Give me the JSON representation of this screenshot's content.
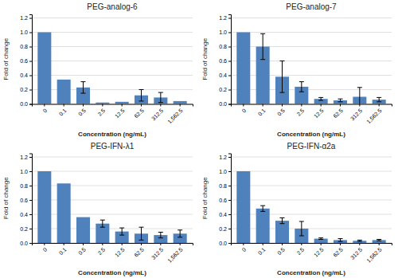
{
  "chart_data": [
    {
      "type": "bar",
      "title": "PEG-analog-6",
      "categories": [
        "0",
        "0.1",
        "0.5",
        "2.5",
        "12.5",
        "62.5",
        "312.5",
        "1,562.5"
      ],
      "values": [
        1.0,
        0.34,
        0.23,
        0.02,
        0.03,
        0.12,
        0.09,
        0.04
      ],
      "errors": [
        0.0,
        0.0,
        0.08,
        0.0,
        0.0,
        0.08,
        0.07,
        0.0
      ],
      "color": "#4f81bd",
      "xlabel": "Concentration (ng/mL)",
      "ylabel": "Fold of change",
      "ylim": [
        0,
        1.25
      ],
      "yticks": [
        {
          "value": 0,
          "label": "0.0"
        },
        0.2,
        0.4,
        0.6,
        0.8,
        {
          "value": 1.0,
          "label": "1.0"
        },
        1.2
      ],
      "grid": true
    },
    {
      "type": "bar",
      "title": "PEG-analog-7",
      "categories": [
        "0",
        "0.1",
        "0.5",
        "2.5",
        "12.5",
        "62.5",
        "312.5",
        "1,562.5"
      ],
      "values": [
        1.0,
        0.8,
        0.38,
        0.24,
        0.07,
        0.05,
        0.1,
        0.06
      ],
      "errors": [
        0.0,
        0.18,
        0.22,
        0.07,
        0.02,
        0.02,
        0.13,
        0.03
      ],
      "color": "#4f81bd",
      "xlabel": "Concentration (ng/mL)",
      "ylabel": "Fold of change",
      "ylim": [
        0,
        1.25
      ],
      "yticks": [
        {
          "value": 0,
          "label": "0.0"
        },
        0.2,
        0.4,
        0.6,
        0.8,
        {
          "value": 1.0,
          "label": "1.0"
        },
        1.2
      ],
      "grid": true
    },
    {
      "type": "bar",
      "title": "PEG-IFN-λ1",
      "categories": [
        "0",
        "0.1",
        "0.5",
        "2.5",
        "12.5",
        "62.5",
        "312.5",
        "1,562.5"
      ],
      "values": [
        1.0,
        0.83,
        0.36,
        0.27,
        0.16,
        0.13,
        0.11,
        0.13
      ],
      "errors": [
        0.0,
        0.0,
        0.0,
        0.05,
        0.05,
        0.09,
        0.04,
        0.05
      ],
      "color": "#4f81bd",
      "xlabel": "Concentration (ng/mL)",
      "ylabel": "Fold of change",
      "ylim": [
        0,
        1.25
      ],
      "yticks": [
        {
          "value": 0,
          "label": "0.0"
        },
        0.2,
        0.4,
        0.6,
        0.8,
        {
          "value": 1.0,
          "label": "1.0"
        },
        1.2
      ],
      "grid": true
    },
    {
      "type": "bar",
      "title": "PEG-IFN-α2a",
      "categories": [
        "0",
        "0.1",
        "0.5",
        "2.5",
        "12.5",
        "62.5",
        "312.5",
        "1,562.5"
      ],
      "values": [
        1.0,
        0.48,
        0.31,
        0.2,
        0.06,
        0.04,
        0.03,
        0.04
      ],
      "errors": [
        0.0,
        0.04,
        0.04,
        0.1,
        0.01,
        0.02,
        0.01,
        0.01
      ],
      "color": "#4f81bd",
      "xlabel": "Concentration (ng/mL)",
      "ylabel": "Fold of change",
      "ylim": [
        0,
        1.25
      ],
      "yticks": [
        {
          "value": 0,
          "label": "0.0"
        },
        0.2,
        0.4,
        0.6,
        0.8,
        {
          "value": 1.0,
          "label": "1.0"
        },
        1.2
      ],
      "grid": true
    }
  ]
}
